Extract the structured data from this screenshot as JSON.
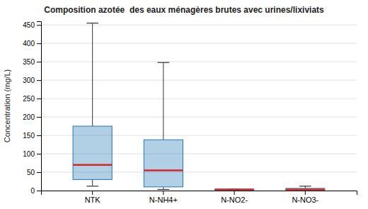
{
  "chart_data": {
    "type": "box",
    "title": "Composition azotée  des eaux ménagères brutes avec urines/lixiviats",
    "y_label": "Concentration (mg/L)",
    "categories": [
      "NTK",
      "N-NH4+",
      "N-NO2-",
      "N-NO3-"
    ],
    "boxes": [
      {
        "q1": 30,
        "median": 70,
        "q3": 175,
        "whisker_low": 12,
        "whisker_high": 455
      },
      {
        "q1": 10,
        "median": 55,
        "q3": 138,
        "whisker_low": 3,
        "whisker_high": 348
      },
      {
        "q1": 0,
        "median": 3,
        "q3": 4,
        "whisker_low": 0,
        "whisker_high": 4
      },
      {
        "q1": 0,
        "median": 3,
        "q3": 6,
        "whisker_low": 0,
        "whisker_high": 12
      }
    ],
    "ylim": [
      0,
      460
    ],
    "yticks": [
      0,
      50,
      100,
      150,
      200,
      250,
      300,
      350,
      400,
      450
    ],
    "grid": true
  }
}
